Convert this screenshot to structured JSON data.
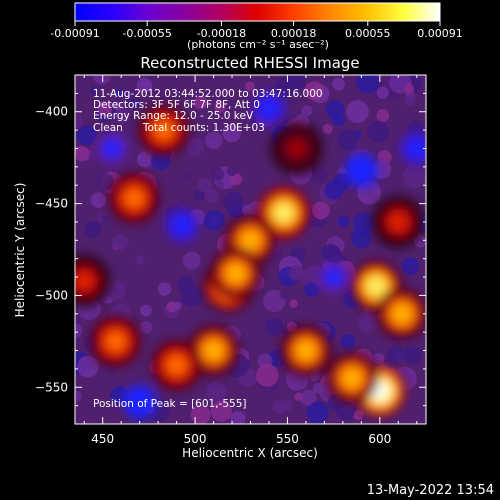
{
  "colorbar": {
    "tick_labels": [
      "-0.00091",
      "-0.00055",
      "-0.00018",
      "0.00018",
      "0.00055",
      "0.00091"
    ],
    "tick_values": [
      -0.00091,
      -0.00055,
      -0.00018,
      0.00018,
      0.00055,
      0.00091
    ],
    "units_label": "(photons cm⁻² s⁻¹ asec⁻²)",
    "colors": [
      "#0000ff",
      "#2a00ff",
      "#6a00d0",
      "#8a00a0",
      "#b00060",
      "#e00000",
      "#ff4000",
      "#ff8800",
      "#ffc000",
      "#ffff40",
      "#ffffff"
    ]
  },
  "title": "Reconstructed RHESSI Image",
  "annotations": {
    "time_range": "11-Aug-2012 03:44:52.000 to 03:47:16.000",
    "detectors": "Detectors: 3F 5F 6F 7F 8F, Att 0",
    "energy": "Energy Range: 12.0 - 25.0 keV",
    "clean": "Clean      Total counts: 1.30E+03",
    "peak": "Position of Peak = [601,-555]"
  },
  "timestamp": "13-May-2022 13:54",
  "chart_data": {
    "type": "heatmap",
    "title": "Reconstructed RHESSI Image",
    "xlabel": "Heliocentric X (arcsec)",
    "ylabel": "Heliocentric Y (arcsec)",
    "xlim": [
      435,
      625
    ],
    "ylim": [
      -570,
      -380
    ],
    "x_ticks": [
      450,
      500,
      550,
      600
    ],
    "y_ticks": [
      -400,
      -450,
      -500,
      -550
    ],
    "x_tick_labels": [
      "450",
      "500",
      "550",
      "600"
    ],
    "y_tick_labels": [
      "−400",
      "−450",
      "−500",
      "−550"
    ],
    "color_range": [
      -0.00091,
      0.00091
    ],
    "peak_position": [
      601,
      -555
    ],
    "bright_sources": [
      {
        "x": 548,
        "y": -455,
        "level": 0.9
      },
      {
        "x": 530,
        "y": -470,
        "level": 0.75
      },
      {
        "x": 518,
        "y": -495,
        "level": 0.8
      },
      {
        "x": 522,
        "y": -488,
        "level": 0.7
      },
      {
        "x": 598,
        "y": -495,
        "level": 0.85
      },
      {
        "x": 612,
        "y": -510,
        "level": 0.7
      },
      {
        "x": 600,
        "y": -552,
        "level": 1.0
      },
      {
        "x": 585,
        "y": -545,
        "level": 0.75
      },
      {
        "x": 560,
        "y": -530,
        "level": 0.7
      },
      {
        "x": 510,
        "y": -530,
        "level": 0.7
      },
      {
        "x": 490,
        "y": -538,
        "level": 0.6
      },
      {
        "x": 467,
        "y": -447,
        "level": 0.6
      },
      {
        "x": 483,
        "y": -410,
        "level": 0.55
      },
      {
        "x": 457,
        "y": -525,
        "level": 0.55
      },
      {
        "x": 555,
        "y": -420,
        "level": 0.35
      },
      {
        "x": 610,
        "y": -460,
        "level": 0.5
      },
      {
        "x": 440,
        "y": -492,
        "level": 0.45
      }
    ],
    "dark_sources": [
      {
        "x": 590,
        "y": -432,
        "level": -0.75
      },
      {
        "x": 470,
        "y": -558,
        "level": -0.6
      },
      {
        "x": 540,
        "y": -398,
        "level": -0.45
      },
      {
        "x": 493,
        "y": -462,
        "level": -0.45
      },
      {
        "x": 455,
        "y": -420,
        "level": -0.35
      },
      {
        "x": 620,
        "y": -420,
        "level": -0.4
      },
      {
        "x": 575,
        "y": -490,
        "level": -0.35
      }
    ]
  }
}
